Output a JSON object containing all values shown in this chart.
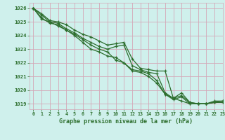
{
  "title": "Graphe pression niveau de la mer (hPa)",
  "bg_color": "#cff0ec",
  "grid_color": "#d4a8b8",
  "line_color": "#2d6e2d",
  "xlim": [
    -0.5,
    23
  ],
  "ylim": [
    1018.6,
    1026.4
  ],
  "yticks": [
    1019,
    1020,
    1021,
    1022,
    1023,
    1024,
    1025,
    1026
  ],
  "xticks": [
    0,
    1,
    2,
    3,
    4,
    5,
    6,
    7,
    8,
    9,
    10,
    11,
    12,
    13,
    14,
    15,
    16,
    17,
    18,
    19,
    20,
    21,
    22,
    23
  ],
  "line1_x": [
    0,
    1,
    2,
    3,
    4,
    5,
    6,
    7,
    8,
    9,
    10,
    11,
    12,
    13,
    14,
    15,
    16,
    17,
    18,
    19,
    20,
    21,
    22,
    23
  ],
  "line1_y": [
    1026.0,
    1025.6,
    1025.1,
    1025.0,
    1024.8,
    1024.4,
    1024.1,
    1023.9,
    1023.6,
    1023.3,
    1023.4,
    1023.5,
    1022.3,
    1021.6,
    1021.5,
    1021.4,
    1021.4,
    1019.4,
    1019.6,
    1019.1,
    1019.0,
    1019.0,
    1019.2,
    1019.2
  ],
  "line2_x": [
    0,
    1,
    2,
    3,
    4,
    5,
    6,
    7,
    8,
    9,
    10,
    11,
    12,
    13,
    14,
    15,
    16,
    17,
    18,
    19,
    20,
    21,
    22,
    23
  ],
  "line2_y": [
    1026.0,
    1025.5,
    1025.0,
    1024.9,
    1024.5,
    1024.2,
    1023.8,
    1023.5,
    1023.2,
    1023.0,
    1023.2,
    1023.3,
    1021.8,
    1021.5,
    1021.3,
    1021.2,
    1019.8,
    1019.4,
    1019.2,
    1019.0,
    1019.0,
    1019.0,
    1019.1,
    1019.1
  ],
  "line3_x": [
    0,
    1,
    2,
    3,
    4,
    5,
    6,
    7,
    8,
    9,
    10,
    11,
    12,
    13,
    14,
    15,
    16,
    17,
    18,
    19,
    20,
    21,
    22,
    23
  ],
  "line3_y": [
    1026.0,
    1025.3,
    1024.9,
    1024.8,
    1024.4,
    1024.1,
    1023.7,
    1023.3,
    1023.0,
    1022.8,
    1022.2,
    1022.0,
    1021.5,
    1021.4,
    1021.2,
    1020.7,
    1019.7,
    1019.4,
    1019.8,
    1019.1,
    1019.0,
    1019.0,
    1019.1,
    1019.1
  ],
  "line4_x": [
    0,
    1,
    2,
    3,
    4,
    5,
    6,
    7,
    8,
    9,
    10,
    11,
    12,
    13,
    14,
    15,
    16,
    17,
    18,
    19,
    20,
    21,
    22,
    23
  ],
  "line4_y": [
    1026.0,
    1025.2,
    1025.0,
    1024.7,
    1024.4,
    1024.0,
    1023.5,
    1023.0,
    1022.8,
    1022.5,
    1022.4,
    1022.0,
    1021.4,
    1021.3,
    1021.0,
    1020.5,
    1019.7,
    1019.3,
    1019.5,
    1019.0,
    1019.0,
    1019.0,
    1019.1,
    1019.2
  ]
}
